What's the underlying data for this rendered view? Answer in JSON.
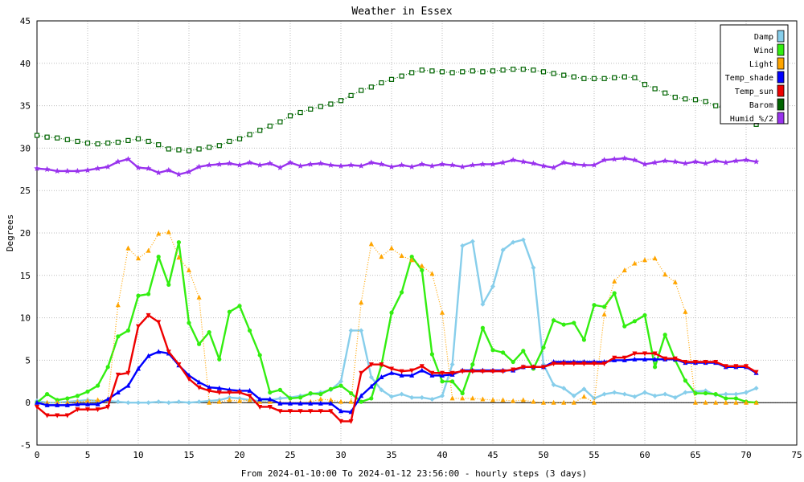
{
  "chart_data": {
    "type": "line",
    "title": "Weather in Essex",
    "ylabel": "Degrees",
    "xlabel": "From 2024-01-10:00 To 2024-01-12 23:56:00 - hourly steps (3 days)",
    "xlim": [
      0,
      75
    ],
    "ylim": [
      -5,
      45
    ],
    "xticks": [
      0,
      5,
      10,
      15,
      20,
      25,
      30,
      35,
      40,
      45,
      50,
      55,
      60,
      65,
      70,
      75
    ],
    "yticks": [
      -5,
      0,
      5,
      10,
      15,
      20,
      25,
      30,
      35,
      40,
      45
    ],
    "grid": true,
    "legend_position": "top-right",
    "x": [
      0,
      1,
      2,
      3,
      4,
      5,
      6,
      7,
      8,
      9,
      10,
      11,
      12,
      13,
      14,
      15,
      16,
      17,
      18,
      19,
      20,
      21,
      22,
      23,
      24,
      25,
      26,
      27,
      28,
      29,
      30,
      31,
      32,
      33,
      34,
      35,
      36,
      37,
      38,
      39,
      40,
      41,
      42,
      43,
      44,
      45,
      46,
      47,
      48,
      49,
      50,
      51,
      52,
      53,
      54,
      55,
      56,
      57,
      58,
      59,
      60,
      61,
      62,
      63,
      64,
      65,
      66,
      67,
      68,
      69,
      70,
      71
    ],
    "series": [
      {
        "name": "Damp",
        "color": "#87ceeb",
        "marker": "diamond",
        "line": "solid",
        "values": [
          0.2,
          0.0,
          0.0,
          0.1,
          0.2,
          0.3,
          0.2,
          0.2,
          0.1,
          0.0,
          0.0,
          0.0,
          0.1,
          0.0,
          0.1,
          0.0,
          0.1,
          0.2,
          0.3,
          0.6,
          0.5,
          0.3,
          0.2,
          0.3,
          0.5,
          0.6,
          0.8,
          1.0,
          1.2,
          1.5,
          2.5,
          8.5,
          8.5,
          3.0,
          1.5,
          0.7,
          1.0,
          0.6,
          0.6,
          0.4,
          0.8,
          4.5,
          18.5,
          19.0,
          11.6,
          13.7,
          18.0,
          18.9,
          19.2,
          15.9,
          4.5,
          2.1,
          1.7,
          0.8,
          1.6,
          0.5,
          1.0,
          1.2,
          1.0,
          0.7,
          1.2,
          0.8,
          1.0,
          0.6,
          1.2,
          1.3,
          1.4,
          0.9,
          1.0,
          1.0,
          1.2,
          1.7
        ]
      },
      {
        "name": "Wind",
        "color": "#33ee11",
        "marker": "circle",
        "line": "solid",
        "values": [
          0.0,
          1.0,
          0.3,
          0.5,
          0.8,
          1.3,
          2.0,
          4.2,
          7.8,
          8.5,
          12.6,
          12.8,
          17.2,
          13.9,
          18.9,
          9.4,
          6.9,
          8.3,
          5.1,
          10.7,
          11.4,
          8.5,
          5.6,
          1.2,
          1.5,
          0.5,
          0.6,
          1.1,
          1.0,
          1.6,
          2.0,
          1.1,
          0.1,
          0.5,
          4.4,
          10.6,
          13.0,
          17.2,
          15.6,
          5.7,
          2.5,
          2.5,
          1.1,
          4.5,
          8.8,
          6.2,
          5.9,
          4.8,
          6.1,
          4.0,
          6.5,
          9.7,
          9.2,
          9.4,
          7.4,
          11.5,
          11.3,
          12.9,
          9.0,
          9.6,
          10.3,
          4.2,
          8.0,
          5.0,
          2.6,
          1.1,
          1.1,
          1.0,
          0.5,
          0.5,
          0.1,
          0.0
        ]
      },
      {
        "name": "Light",
        "color": "#ffa500",
        "marker": "triangle",
        "line": "dotted",
        "values": [
          0.0,
          0.0,
          0.0,
          0.0,
          0.1,
          0.2,
          0.3,
          0.3,
          11.5,
          18.2,
          17.0,
          17.9,
          19.9,
          20.1,
          17.1,
          15.6,
          12.4,
          0.0,
          0.1,
          0.3,
          0.2,
          0.3,
          0.1,
          0.1,
          0.0,
          0.0,
          0.0,
          0.1,
          0.4,
          0.3,
          0.1,
          0.1,
          11.8,
          18.7,
          17.2,
          18.2,
          17.3,
          16.8,
          16.1,
          15.2,
          10.6,
          0.5,
          0.5,
          0.5,
          0.4,
          0.3,
          0.3,
          0.2,
          0.3,
          0.1,
          0.0,
          0.0,
          0.0,
          0.0,
          0.7,
          0.0,
          10.4,
          14.3,
          15.6,
          16.4,
          16.8,
          17.0,
          15.1,
          14.2,
          10.7,
          0.0,
          0.0,
          0.0,
          0.0,
          0.0,
          0.0,
          0.0
        ]
      },
      {
        "name": "Temp_shade",
        "color": "#0000ff",
        "marker": "triangle",
        "line": "solid",
        "values": [
          0.0,
          -0.3,
          -0.3,
          -0.3,
          -0.2,
          -0.2,
          -0.2,
          0.4,
          1.2,
          2.0,
          4.0,
          5.5,
          6.0,
          5.8,
          4.4,
          3.2,
          2.4,
          1.8,
          1.7,
          1.5,
          1.4,
          1.4,
          0.4,
          0.4,
          -0.1,
          -0.1,
          -0.1,
          -0.1,
          -0.1,
          -0.1,
          -1.0,
          -1.1,
          0.8,
          1.9,
          3.0,
          3.5,
          3.2,
          3.2,
          3.8,
          3.2,
          3.2,
          3.3,
          3.8,
          3.8,
          3.8,
          3.8,
          3.8,
          3.8,
          4.2,
          4.2,
          4.2,
          4.8,
          4.8,
          4.8,
          4.8,
          4.8,
          4.8,
          5.0,
          5.0,
          5.1,
          5.1,
          5.1,
          5.1,
          5.1,
          4.7,
          4.7,
          4.7,
          4.7,
          4.2,
          4.2,
          4.2,
          3.5
        ]
      },
      {
        "name": "Temp_sun",
        "color": "#ee0000",
        "marker": "triangle-down",
        "line": "solid",
        "values": [
          -0.5,
          -1.5,
          -1.5,
          -1.5,
          -0.8,
          -0.8,
          -0.8,
          -0.5,
          3.3,
          3.5,
          9.0,
          10.3,
          9.5,
          6.0,
          4.5,
          2.8,
          1.8,
          1.4,
          1.2,
          1.2,
          1.2,
          0.8,
          -0.5,
          -0.5,
          -1.0,
          -1.0,
          -1.0,
          -1.0,
          -1.0,
          -1.0,
          -2.2,
          -2.2,
          3.5,
          4.5,
          4.5,
          4.0,
          3.7,
          3.8,
          4.3,
          3.5,
          3.5,
          3.5,
          3.7,
          3.7,
          3.7,
          3.7,
          3.7,
          3.9,
          4.2,
          4.2,
          4.2,
          4.6,
          4.6,
          4.6,
          4.6,
          4.6,
          4.6,
          5.3,
          5.3,
          5.8,
          5.8,
          5.8,
          5.2,
          5.2,
          4.8,
          4.8,
          4.8,
          4.8,
          4.3,
          4.3,
          4.3,
          3.6
        ]
      },
      {
        "name": "Barom",
        "color": "#006400",
        "marker": "square",
        "line": "dotted",
        "values": [
          31.5,
          31.3,
          31.2,
          31.0,
          30.8,
          30.6,
          30.5,
          30.6,
          30.7,
          30.9,
          31.1,
          30.8,
          30.4,
          29.9,
          29.8,
          29.7,
          29.9,
          30.1,
          30.3,
          30.8,
          31.1,
          31.6,
          32.1,
          32.6,
          33.1,
          33.8,
          34.2,
          34.6,
          34.9,
          35.2,
          35.6,
          36.2,
          36.8,
          37.2,
          37.7,
          38.1,
          38.5,
          38.9,
          39.2,
          39.1,
          39.0,
          38.9,
          39.0,
          39.1,
          39.0,
          39.1,
          39.2,
          39.3,
          39.3,
          39.2,
          39.0,
          38.8,
          38.6,
          38.4,
          38.2,
          38.2,
          38.2,
          38.3,
          38.4,
          38.3,
          37.5,
          37.0,
          36.5,
          36.0,
          35.8,
          35.7,
          35.5,
          35.0,
          34.6,
          33.8,
          33.2,
          32.8
        ]
      },
      {
        "name": "Humid_%/2",
        "color": "#9933ee",
        "marker": "star",
        "line": "solid",
        "values": [
          27.6,
          27.5,
          27.3,
          27.3,
          27.3,
          27.4,
          27.6,
          27.8,
          28.4,
          28.7,
          27.7,
          27.6,
          27.1,
          27.4,
          26.9,
          27.2,
          27.8,
          28.0,
          28.1,
          28.2,
          28.0,
          28.3,
          28.0,
          28.2,
          27.7,
          28.3,
          27.9,
          28.1,
          28.2,
          28.0,
          27.9,
          28.0,
          27.9,
          28.3,
          28.1,
          27.8,
          28.0,
          27.8,
          28.1,
          27.9,
          28.1,
          28.0,
          27.8,
          28.0,
          28.1,
          28.1,
          28.3,
          28.6,
          28.4,
          28.2,
          27.9,
          27.7,
          28.3,
          28.1,
          28.0,
          28.0,
          28.6,
          28.7,
          28.8,
          28.6,
          28.1,
          28.3,
          28.5,
          28.4,
          28.2,
          28.4,
          28.2,
          28.5,
          28.3,
          28.5,
          28.6,
          28.4
        ]
      }
    ]
  }
}
